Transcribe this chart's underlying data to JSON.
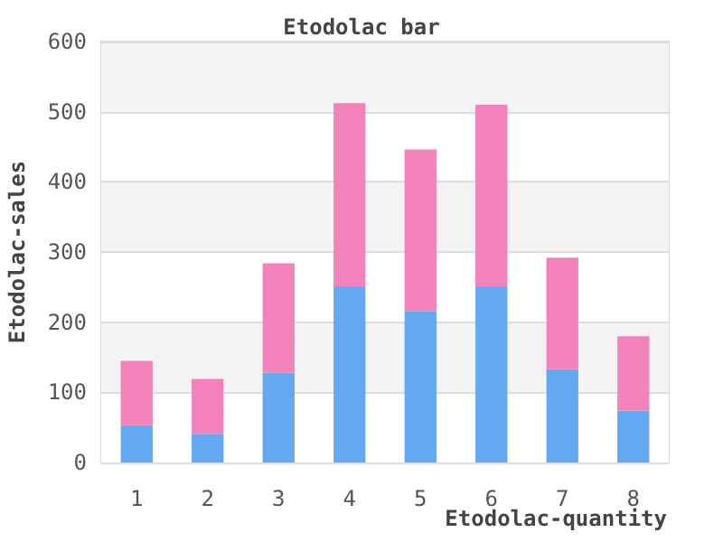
{
  "chart_data": {
    "type": "bar",
    "title": "Etodolac bar",
    "xlabel": "Etodolac-quantity",
    "ylabel": "Etodolac-sales",
    "categories": [
      "1",
      "2",
      "3",
      "4",
      "5",
      "6",
      "7",
      "8"
    ],
    "stacked": true,
    "series": [
      {
        "color": "#63a9f2",
        "values": [
          53,
          41,
          128,
          251,
          216,
          251,
          133,
          74
        ]
      },
      {
        "color": "#f282b9",
        "values": [
          92,
          78,
          156,
          261,
          230,
          259,
          159,
          106
        ]
      }
    ],
    "ylim": [
      0,
      600
    ],
    "yticks": [
      0,
      100,
      200,
      300,
      400,
      500,
      600
    ],
    "grid": "y"
  }
}
